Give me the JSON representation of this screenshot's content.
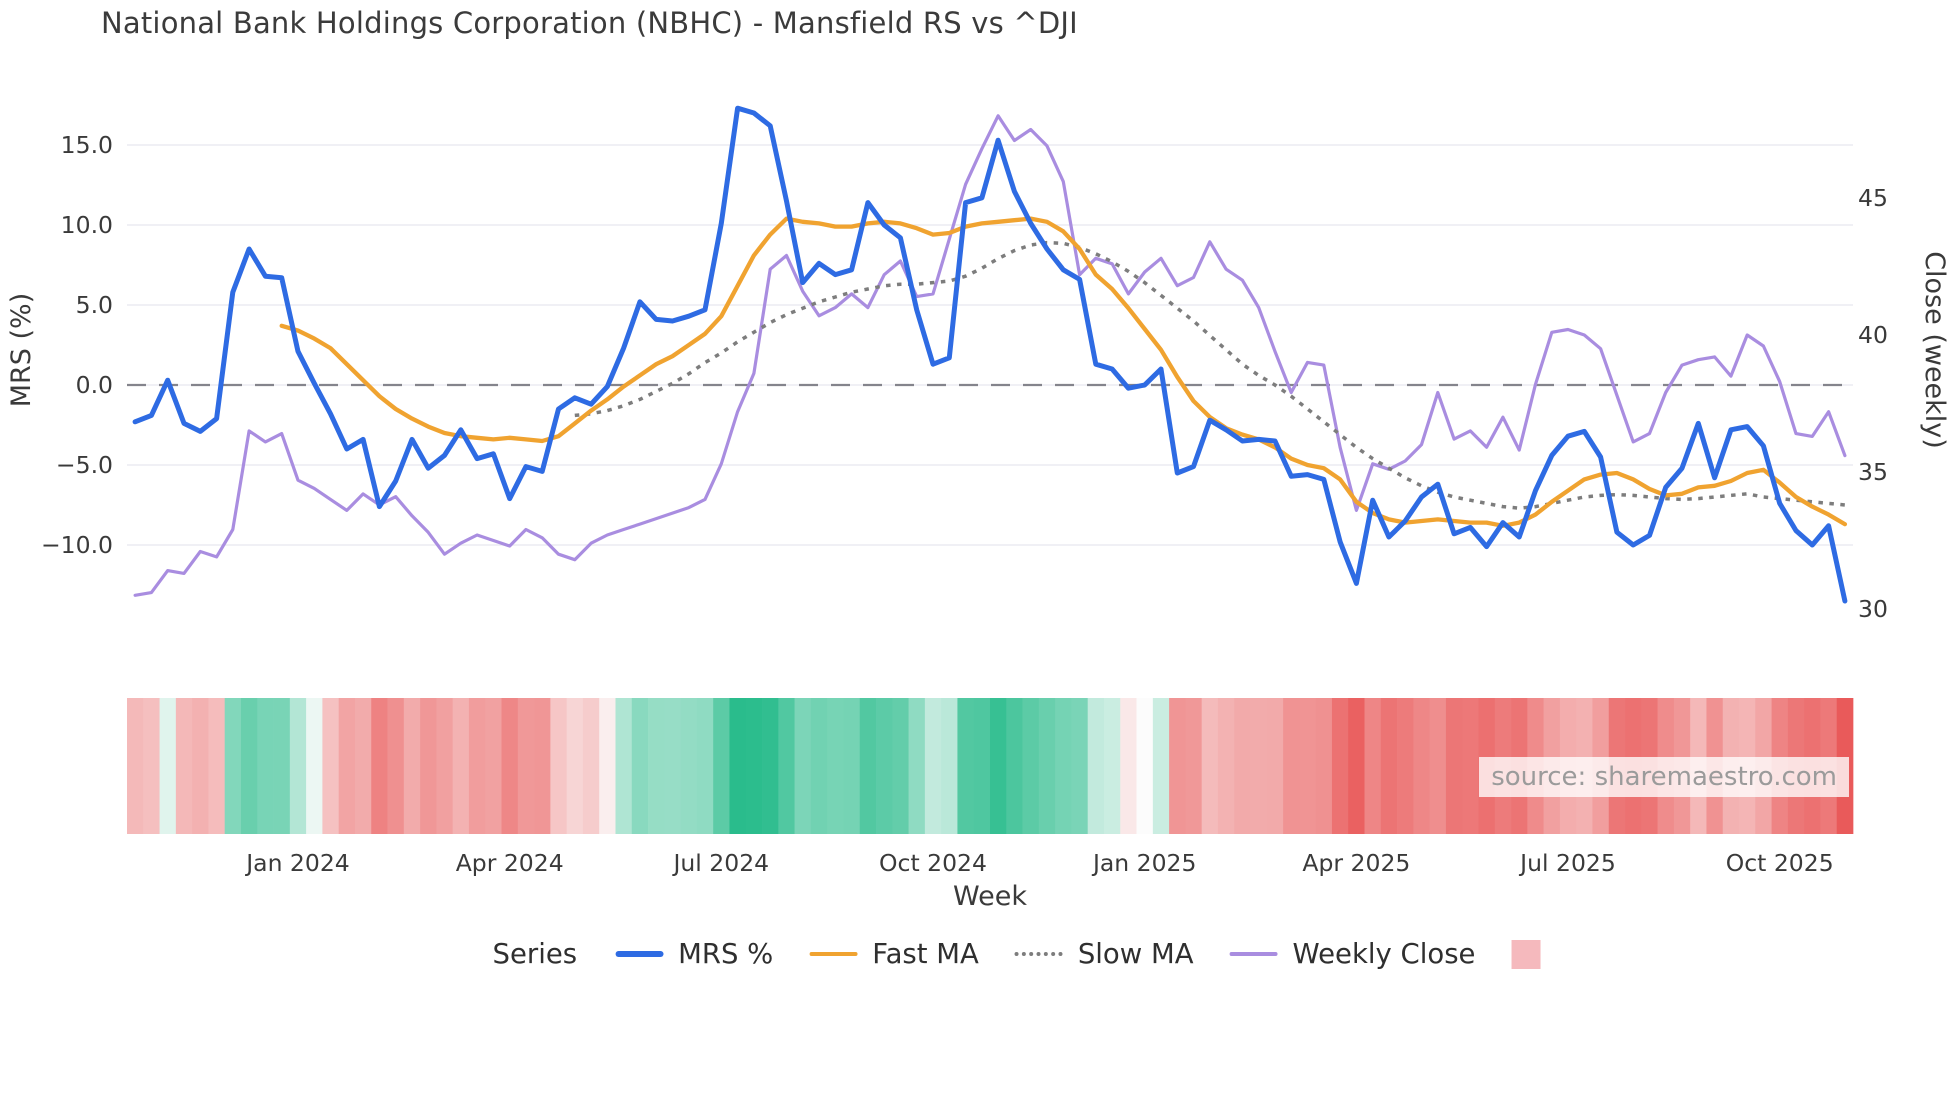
{
  "title": "National Bank Holdings Corporation (NBHC) - Mansfield RS vs ^DJI",
  "source_note": "source: sharemaestro.com",
  "axes": {
    "left_label": "MRS (%)",
    "right_label": "Close (weekly)",
    "x_label": "Week",
    "left_ticks": [
      "15.0",
      "10.0",
      "5.0",
      "0.0",
      "−5.0",
      "−10.0"
    ],
    "left_tick_values": [
      15,
      10,
      5,
      0,
      -5,
      -10
    ],
    "right_ticks": [
      "45",
      "40",
      "35",
      "30"
    ],
    "right_tick_values": [
      45,
      40,
      35,
      30
    ],
    "x_ticks": [
      {
        "label": "Jan 2024",
        "week": 10
      },
      {
        "label": "Apr 2024",
        "week": 23
      },
      {
        "label": "Jul 2024",
        "week": 36
      },
      {
        "label": "Oct 2024",
        "week": 49
      },
      {
        "label": "Jan 2025",
        "week": 62
      },
      {
        "label": "Apr 2025",
        "week": 75
      },
      {
        "label": "Jul 2025",
        "week": 88
      },
      {
        "label": "Oct 2025",
        "week": 101
      }
    ]
  },
  "legend": {
    "title": "Series",
    "items": [
      {
        "label": "MRS %",
        "swatch": "line",
        "color": "#2e6be3"
      },
      {
        "label": "Fast MA",
        "swatch": "line-thin",
        "color": "#f0a330"
      },
      {
        "label": "Slow MA",
        "swatch": "dotted",
        "color": "#7d7d7d"
      },
      {
        "label": "Weekly Close",
        "swatch": "line-thin",
        "color": "#a98de0"
      },
      {
        "label": "",
        "swatch": "patch",
        "color": "#f5b9bd"
      }
    ]
  },
  "colors": {
    "mrs": "#2e6be3",
    "fast_ma": "#f0a330",
    "slow_ma": "#7d7d7d",
    "weekly_close": "#a98de0",
    "zero_line": "#84848c",
    "gridline": "#ececf2",
    "heat_positive": "#2abc8c",
    "heat_negative": "#e95a5a",
    "legend_patch": "#f5b9bd",
    "text": "#3a3a3a",
    "muted_text": "#9b9b9b"
  },
  "chart_data": {
    "type": "line",
    "title": "National Bank Holdings Corporation (NBHC) - Mansfield RS vs ^DJI",
    "xlabel": "Week",
    "ylabel_left": "MRS (%)",
    "ylabel_right": "Close (weekly)",
    "x_unit": "week_index",
    "n_weeks": 106,
    "left_ylim": [
      -16.5,
      18.8
    ],
    "right_ylim": [
      28.5,
      49.2
    ],
    "grid": "horizontal",
    "zero_reference_line": 0,
    "legend_position": "bottom",
    "series": [
      {
        "name": "MRS %",
        "axis": "left",
        "color": "#2e6be3",
        "style": "solid",
        "width": 5,
        "values": [
          -2.3,
          -1.9,
          0.3,
          -2.4,
          -2.9,
          -2.1,
          5.8,
          8.5,
          6.8,
          6.7,
          2.1,
          0.1,
          -1.8,
          -4.0,
          -3.4,
          -7.6,
          -6.0,
          -3.4,
          -5.2,
          -4.4,
          -2.8,
          -4.6,
          -4.3,
          -7.1,
          -5.1,
          -5.4,
          -1.5,
          -0.8,
          -1.2,
          -0.1,
          2.3,
          5.2,
          4.1,
          4.0,
          4.3,
          4.7,
          10.1,
          17.3,
          17.0,
          16.2,
          11.5,
          6.4,
          7.6,
          6.9,
          7.2,
          11.4,
          10.0,
          9.2,
          4.7,
          1.3,
          1.7,
          11.4,
          11.7,
          15.3,
          12.1,
          10.1,
          8.5,
          7.2,
          6.6,
          1.3,
          1.0,
          -0.2,
          0.0,
          1.0,
          -5.5,
          -5.1,
          -2.2,
          -2.8,
          -3.5,
          -3.4,
          -3.5,
          -5.7,
          -5.6,
          -5.9,
          -9.8,
          -12.4,
          -7.2,
          -9.5,
          -8.5,
          -7.0,
          -6.2,
          -9.3,
          -8.9,
          -10.1,
          -8.6,
          -9.5,
          -6.6,
          -4.4,
          -3.2,
          -2.9,
          -4.5,
          -9.2,
          -10.0,
          -9.4,
          -6.4,
          -5.2,
          -2.4,
          -5.8,
          -2.8,
          -2.6,
          -3.8,
          -7.4,
          -9.1,
          -10.0,
          -8.8,
          -13.5
        ]
      },
      {
        "name": "Fast MA",
        "axis": "left",
        "color": "#f0a330",
        "style": "solid",
        "width": 4.3,
        "values": [
          null,
          null,
          null,
          null,
          null,
          null,
          null,
          null,
          null,
          3.7,
          3.4,
          2.9,
          2.3,
          1.3,
          0.3,
          -0.7,
          -1.5,
          -2.1,
          -2.6,
          -3.0,
          -3.2,
          -3.3,
          -3.4,
          -3.3,
          -3.4,
          -3.5,
          -3.2,
          -2.4,
          -1.6,
          -0.9,
          -0.1,
          0.6,
          1.3,
          1.8,
          2.5,
          3.2,
          4.3,
          6.2,
          8.1,
          9.4,
          10.4,
          10.2,
          10.1,
          9.9,
          9.9,
          10.1,
          10.2,
          10.1,
          9.8,
          9.4,
          9.5,
          9.9,
          10.1,
          10.2,
          10.3,
          10.4,
          10.2,
          9.6,
          8.5,
          6.9,
          6.0,
          4.8,
          3.5,
          2.2,
          0.5,
          -1.0,
          -2.0,
          -2.7,
          -3.1,
          -3.4,
          -3.9,
          -4.6,
          -5.0,
          -5.2,
          -5.9,
          -7.3,
          -8.0,
          -8.4,
          -8.6,
          -8.5,
          -8.4,
          -8.5,
          -8.6,
          -8.6,
          -8.8,
          -8.6,
          -8.1,
          -7.3,
          -6.6,
          -5.9,
          -5.6,
          -5.5,
          -5.9,
          -6.5,
          -6.9,
          -6.8,
          -6.4,
          -6.3,
          -6.0,
          -5.5,
          -5.3,
          -6.1,
          -7.0,
          -7.6,
          -8.1,
          -8.7
        ]
      },
      {
        "name": "Slow MA",
        "axis": "left",
        "color": "#7d7d7d",
        "style": "dotted",
        "width": 3.5,
        "values": [
          null,
          null,
          null,
          null,
          null,
          null,
          null,
          null,
          null,
          null,
          null,
          null,
          null,
          null,
          null,
          null,
          null,
          null,
          null,
          null,
          null,
          null,
          null,
          null,
          null,
          null,
          null,
          -1.9,
          -1.8,
          -1.6,
          -1.3,
          -0.9,
          -0.4,
          0.1,
          0.7,
          1.4,
          2.0,
          2.7,
          3.3,
          3.9,
          4.4,
          4.8,
          5.2,
          5.5,
          5.8,
          6.0,
          6.2,
          6.3,
          6.3,
          6.4,
          6.5,
          6.8,
          7.3,
          7.9,
          8.4,
          8.75,
          8.9,
          8.85,
          8.6,
          8.2,
          7.7,
          7.1,
          6.4,
          5.6,
          4.8,
          4.0,
          3.1,
          2.2,
          1.3,
          0.6,
          0.0,
          -0.7,
          -1.5,
          -2.3,
          -3.1,
          -3.9,
          -4.6,
          -5.2,
          -5.8,
          -6.3,
          -6.7,
          -7.0,
          -7.2,
          -7.4,
          -7.6,
          -7.7,
          -7.6,
          -7.4,
          -7.2,
          -7.0,
          -6.9,
          -6.85,
          -6.9,
          -7.0,
          -7.1,
          -7.15,
          -7.1,
          -7.0,
          -6.9,
          -6.8,
          -7.0,
          -7.1,
          -7.2,
          -7.3,
          -7.4,
          -7.5
        ]
      },
      {
        "name": "Weekly Close",
        "axis": "right",
        "color": "#a98de0",
        "style": "solid",
        "width": 3.2,
        "values": [
          30.5,
          30.6,
          31.4,
          31.3,
          32.1,
          31.9,
          32.9,
          36.5,
          36.1,
          36.4,
          34.7,
          34.4,
          34.0,
          33.6,
          34.2,
          33.8,
          34.1,
          33.4,
          32.8,
          32.0,
          32.4,
          32.7,
          32.5,
          32.3,
          32.9,
          32.6,
          32.0,
          31.8,
          32.4,
          32.7,
          32.9,
          33.1,
          33.3,
          33.5,
          33.7,
          34.0,
          35.3,
          37.2,
          38.6,
          42.4,
          42.9,
          41.6,
          40.7,
          41.0,
          41.5,
          41.0,
          42.2,
          42.7,
          41.4,
          41.5,
          43.5,
          45.5,
          46.8,
          48.0,
          47.1,
          47.5,
          46.9,
          45.6,
          42.2,
          42.8,
          42.6,
          41.5,
          42.3,
          42.8,
          41.8,
          42.1,
          43.4,
          42.4,
          42.0,
          41.0,
          39.4,
          37.9,
          39.0,
          38.9,
          35.9,
          33.6,
          35.3,
          35.1,
          35.4,
          36.0,
          37.9,
          36.2,
          36.5,
          35.9,
          37.0,
          35.8,
          38.2,
          40.1,
          40.2,
          40.0,
          39.5,
          37.8,
          36.1,
          36.4,
          37.9,
          38.9,
          39.1,
          39.2,
          38.5,
          40.0,
          39.6,
          38.3,
          36.4,
          36.3,
          37.2,
          35.6
        ]
      }
    ],
    "heatmap": {
      "description": "weekly color strip below chart, diverging red-to-green keyed to MRS % value",
      "source_series": "MRS %",
      "positive_color": "#2abc8c",
      "negative_color": "#e95a5a",
      "neutral_color": "#fcfcfc",
      "max_positive": 17.3,
      "max_negative": 13.5
    }
  }
}
